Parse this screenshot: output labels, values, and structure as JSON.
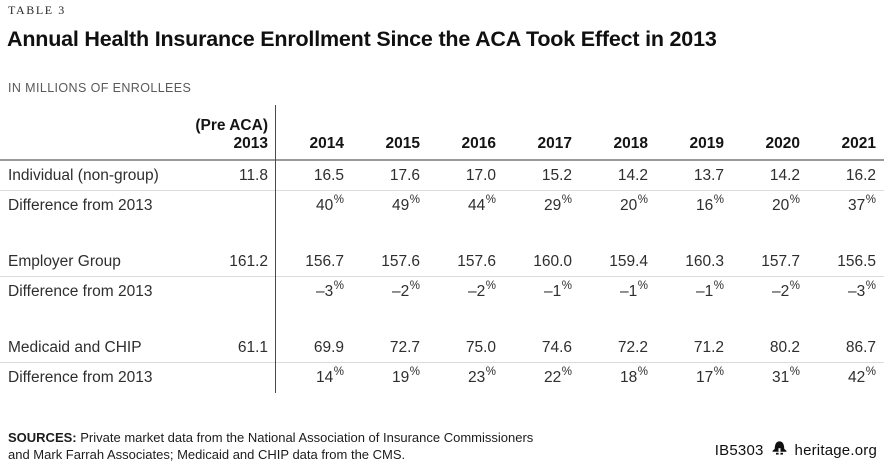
{
  "meta": {
    "table_label": "TABLE 3"
  },
  "header": {
    "title": "Annual Health Insurance Enrollment Since the ACA Took Effect in 2013",
    "kicker": "IN MILLIONS OF ENROLLEES"
  },
  "table": {
    "pre_aca_label": "(Pre ACA)",
    "base_year": "2013",
    "years": [
      "2014",
      "2015",
      "2016",
      "2017",
      "2018",
      "2019",
      "2020",
      "2021"
    ],
    "sections": [
      {
        "label": "Individual (non-group)",
        "base": "11.8",
        "values": [
          "16.5",
          "17.6",
          "17.0",
          "15.2",
          "14.2",
          "13.7",
          "14.2",
          "16.2"
        ],
        "diff_label": "Difference from 2013",
        "diffs": [
          "40%",
          "49%",
          "44%",
          "29%",
          "20%",
          "16%",
          "20%",
          "37%"
        ]
      },
      {
        "label": "Employer Group",
        "base": "161.2",
        "values": [
          "156.7",
          "157.6",
          "157.6",
          "160.0",
          "159.4",
          "160.3",
          "157.7",
          "156.5"
        ],
        "diff_label": "Difference from 2013",
        "diffs": [
          "–3%",
          "–2%",
          "–2%",
          "–1%",
          "–1%",
          "–1%",
          "–2%",
          "–3%"
        ]
      },
      {
        "label": "Medicaid and CHIP",
        "base": "61.1",
        "values": [
          "69.9",
          "72.7",
          "75.0",
          "74.6",
          "72.2",
          "71.2",
          "80.2",
          "86.7"
        ],
        "diff_label": "Difference from 2013",
        "diffs": [
          "14%",
          "19%",
          "23%",
          "22%",
          "18%",
          "17%",
          "31%",
          "42%"
        ]
      }
    ]
  },
  "footer": {
    "sources_label": "SOURCES:",
    "sources_line1": "Private market data from the National Association of Insurance Commissioners",
    "sources_line2": "and Mark Farrah Associates; Medicaid and CHIP data from the CMS.",
    "report_id": "IB5303",
    "site": "heritage.org",
    "logo_icon": "liberty-bell-icon"
  },
  "colors": {
    "title": "#101010",
    "kicker": "#595959",
    "text": "#2e2e2e",
    "header_rule": "#9a9a9a",
    "row_rule": "#dcdcdc",
    "divider": "#4a4a4a"
  },
  "chart_data": {
    "type": "table",
    "title": "Annual Health Insurance Enrollment Since the ACA Took Effect in 2013",
    "units": "millions of enrollees",
    "columns": [
      "(Pre ACA) 2013",
      "2014",
      "2015",
      "2016",
      "2017",
      "2018",
      "2019",
      "2020",
      "2021"
    ],
    "rows": [
      {
        "label": "Individual (non-group)",
        "values": [
          11.8,
          16.5,
          17.6,
          17.0,
          15.2,
          14.2,
          13.7,
          14.2,
          16.2
        ]
      },
      {
        "label": "Difference from 2013",
        "values": [
          null,
          "40%",
          "49%",
          "44%",
          "29%",
          "20%",
          "16%",
          "20%",
          "37%"
        ]
      },
      {
        "label": "Employer Group",
        "values": [
          161.2,
          156.7,
          157.6,
          157.6,
          160.0,
          159.4,
          160.3,
          157.7,
          156.5
        ]
      },
      {
        "label": "Difference from 2013",
        "values": [
          null,
          "-3%",
          "-2%",
          "-2%",
          "-1%",
          "-1%",
          "-1%",
          "-2%",
          "-3%"
        ]
      },
      {
        "label": "Medicaid and CHIP",
        "values": [
          61.1,
          69.9,
          72.7,
          75.0,
          74.6,
          72.2,
          71.2,
          80.2,
          86.7
        ]
      },
      {
        "label": "Difference from 2013",
        "values": [
          null,
          "14%",
          "19%",
          "23%",
          "22%",
          "18%",
          "17%",
          "31%",
          "42%"
        ]
      }
    ]
  }
}
